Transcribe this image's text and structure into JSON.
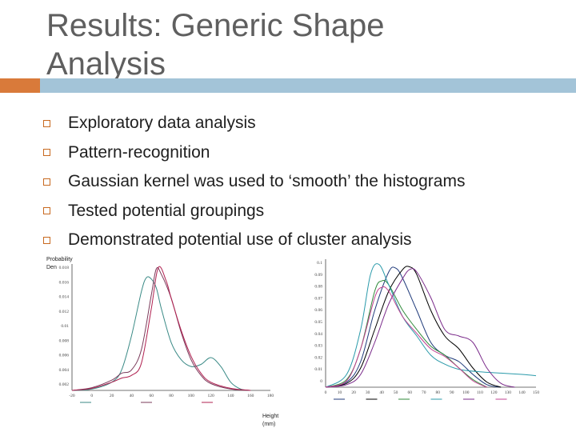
{
  "slide": {
    "title_line1": "Results: Generic Shape",
    "title_line2": "Analysis",
    "bullets": [
      "Exploratory data analysis",
      "Pattern-recognition",
      "Gaussian kernel was used to ‘smooth’ the histograms",
      "Tested potential groupings",
      "Demonstrated potential use of cluster analysis"
    ],
    "axis_left": {
      "ylabel_line1": "Probability",
      "ylabel_line2": "Den"
    },
    "axis_bottom": {
      "xlabel_line1": "Height",
      "xlabel_line2": "(mm)"
    },
    "accent_colors": {
      "title_bar_orange": "#d97a3a",
      "title_bar_blue": "#a3c4d8",
      "bullet": "#c8691f"
    },
    "icons": [
      "bullet-square-icon"
    ]
  },
  "chart_data": [
    {
      "type": "line",
      "x_ticks": [
        "-20",
        "0",
        "20",
        "40",
        "60",
        "80",
        "100",
        "120",
        "140",
        "160",
        "180"
      ],
      "y_ticks": [
        "0.018",
        "0.016",
        "0.014",
        "0.012",
        "0.01",
        "0.008",
        "0.006",
        "0.004",
        "0.002"
      ],
      "xlim": [
        -20,
        180
      ],
      "ylim": [
        0,
        0.0185
      ],
      "series": [
        {
          "color": "#3a8a86",
          "x": [
            -20,
            0,
            20,
            30,
            40,
            50,
            55,
            60,
            65,
            70,
            80,
            90,
            100,
            110,
            120,
            130,
            140,
            150,
            160
          ],
          "values": [
            0,
            0.0002,
            0.0012,
            0.003,
            0.008,
            0.0145,
            0.0165,
            0.0163,
            0.015,
            0.012,
            0.007,
            0.0045,
            0.0035,
            0.0038,
            0.0048,
            0.0035,
            0.0012,
            0.0002,
            0
          ]
        },
        {
          "color": "#7a3a5a",
          "x": [
            -20,
            0,
            20,
            30,
            40,
            50,
            60,
            65,
            70,
            80,
            90,
            100,
            110,
            120,
            140,
            160
          ],
          "values": [
            0,
            0.0004,
            0.0015,
            0.0025,
            0.003,
            0.006,
            0.014,
            0.0178,
            0.017,
            0.0135,
            0.0085,
            0.0045,
            0.0022,
            0.001,
            0.0002,
            0
          ]
        },
        {
          "color": "#b02050",
          "x": [
            -20,
            0,
            20,
            30,
            40,
            50,
            60,
            67,
            75,
            80,
            90,
            100,
            110,
            120,
            140,
            160
          ],
          "values": [
            0,
            0.0003,
            0.0012,
            0.0018,
            0.0022,
            0.004,
            0.012,
            0.018,
            0.016,
            0.0135,
            0.0088,
            0.005,
            0.0025,
            0.0012,
            0.0003,
            0
          ]
        }
      ]
    },
    {
      "type": "line",
      "y_ticks": [
        "0.1",
        "0.09",
        "0.08",
        "0.07",
        "0.06",
        "0.05",
        "0.04",
        "0.03",
        "0.02",
        "0.01",
        "0"
      ],
      "x_ticks": [
        "0",
        "10",
        "20",
        "30",
        "40",
        "50",
        "60",
        "70",
        "80",
        "90",
        "100",
        "110",
        "120",
        "130",
        "140",
        "150"
      ],
      "xlim": [
        0,
        150
      ],
      "ylim": [
        0,
        0.1
      ],
      "series": [
        {
          "color": "#1f3a7a",
          "x": [
            0,
            15,
            25,
            35,
            45,
            50,
            55,
            65,
            75,
            85,
            95,
            105,
            115,
            125
          ],
          "values": [
            0,
            0.004,
            0.02,
            0.06,
            0.09,
            0.093,
            0.085,
            0.06,
            0.035,
            0.025,
            0.02,
            0.01,
            0.002,
            0
          ]
        },
        {
          "color": "#000000",
          "x": [
            0,
            15,
            25,
            35,
            45,
            55,
            60,
            65,
            75,
            85,
            95,
            105,
            115,
            125
          ],
          "values": [
            0,
            0.003,
            0.015,
            0.045,
            0.075,
            0.092,
            0.094,
            0.088,
            0.06,
            0.04,
            0.03,
            0.015,
            0.004,
            0
          ]
        },
        {
          "color": "#2f8a3a",
          "x": [
            0,
            15,
            25,
            35,
            40,
            45,
            55,
            65,
            75,
            85,
            95,
            105,
            115
          ],
          "values": [
            0,
            0.006,
            0.03,
            0.075,
            0.083,
            0.08,
            0.06,
            0.045,
            0.032,
            0.025,
            0.015,
            0.006,
            0
          ]
        },
        {
          "color": "#2a9aaa",
          "x": [
            0,
            15,
            25,
            32,
            38,
            45,
            55,
            65,
            75,
            85,
            95,
            110,
            125,
            140,
            150
          ],
          "values": [
            0,
            0.01,
            0.045,
            0.088,
            0.096,
            0.08,
            0.055,
            0.04,
            0.025,
            0.018,
            0.014,
            0.012,
            0.011,
            0.01,
            0.009
          ]
        },
        {
          "color": "#7a2a8a",
          "x": [
            0,
            15,
            25,
            35,
            45,
            55,
            60,
            65,
            75,
            85,
            95,
            105,
            115,
            125,
            135
          ],
          "values": [
            0,
            0.002,
            0.01,
            0.035,
            0.065,
            0.085,
            0.092,
            0.09,
            0.07,
            0.045,
            0.04,
            0.035,
            0.015,
            0.003,
            0
          ]
        },
        {
          "color": "#c04090",
          "x": [
            0,
            15,
            25,
            35,
            40,
            45,
            55,
            65,
            75,
            85,
            95,
            105,
            115
          ],
          "values": [
            0,
            0.005,
            0.03,
            0.07,
            0.078,
            0.075,
            0.055,
            0.042,
            0.03,
            0.024,
            0.015,
            0.005,
            0
          ]
        }
      ]
    }
  ]
}
